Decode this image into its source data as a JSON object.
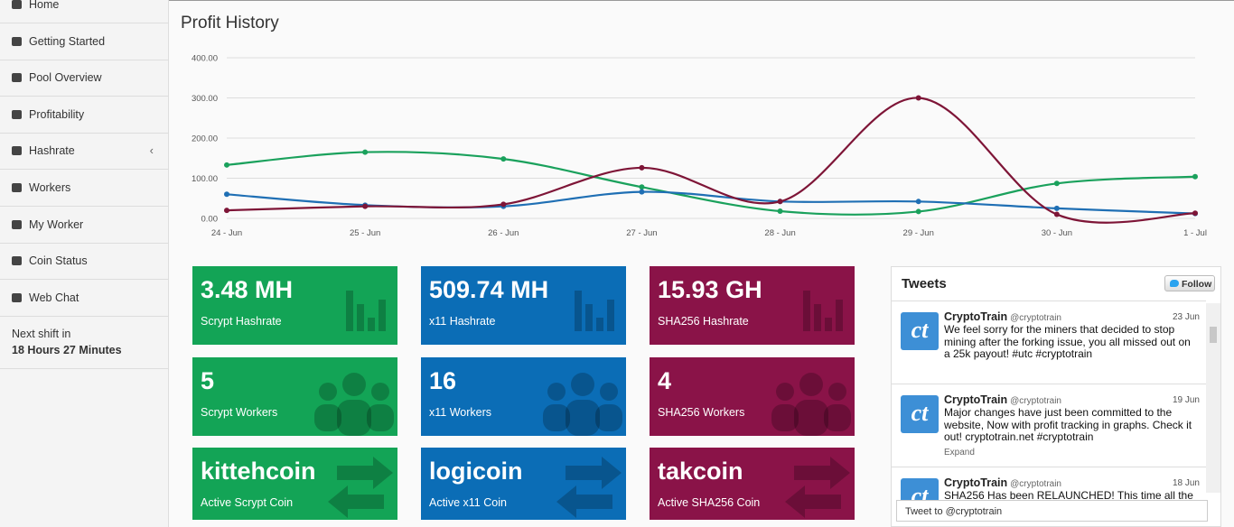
{
  "sidebar": {
    "items": [
      "Home",
      "Getting Started",
      "Pool Overview",
      "Profitability",
      "Hashrate",
      "Workers",
      "My Worker",
      "Coin Status",
      "Web Chat"
    ],
    "shift_label": "Next shift in",
    "shift_value": "18 Hours 27 Minutes"
  },
  "chart_data": {
    "type": "line",
    "title": "Profit History",
    "categories": [
      "24 - Jun",
      "25 - Jun",
      "26 - Jun",
      "27 - Jun",
      "28 - Jun",
      "29 - Jun",
      "30 - Jun",
      "1 - Jul"
    ],
    "series": [
      {
        "color": "#1aa15c",
        "values": [
          133,
          165,
          148,
          78,
          18,
          17,
          87,
          104
        ]
      },
      {
        "color": "#1f6fb4",
        "values": [
          60,
          33,
          30,
          66,
          42,
          42,
          25,
          12
        ]
      },
      {
        "color": "#7e1537",
        "values": [
          20,
          30,
          35,
          126,
          42,
          300,
          10,
          13
        ]
      }
    ],
    "ylim": [
      0,
      400
    ],
    "yticks": [
      {
        "value": 0,
        "label": "0.00"
      },
      {
        "value": 100,
        "label": "100.00"
      },
      {
        "value": 200,
        "label": "200.00"
      },
      {
        "value": 300,
        "label": "300.00"
      },
      {
        "value": 400,
        "label": "400.00"
      }
    ],
    "grid": true
  },
  "tiles": {
    "colors": [
      "#13a456",
      "#0b6db6",
      "#8a1348"
    ],
    "rows": [
      [
        {
          "value": "3.48 MH",
          "label": "Scrypt Hashrate"
        },
        {
          "value": "509.74 MH",
          "label": "x11 Hashrate"
        },
        {
          "value": "15.93 GH",
          "label": "SHA256 Hashrate"
        }
      ],
      [
        {
          "value": "5",
          "label": "Scrypt Workers"
        },
        {
          "value": "16",
          "label": "x11 Workers"
        },
        {
          "value": "4",
          "label": "SHA256 Workers"
        }
      ],
      [
        {
          "value": "kittehcoin",
          "label": "Active Scrypt Coin"
        },
        {
          "value": "logicoin",
          "label": "Active x11 Coin"
        },
        {
          "value": "takcoin",
          "label": "Active SHA256 Coin"
        }
      ]
    ]
  },
  "tweets": {
    "title": "Tweets",
    "follow": "Follow",
    "avatar": "ct",
    "items": [
      {
        "name": "CryptoTrain",
        "handle": "@cryptotrain",
        "date": "23 Jun",
        "text": "We feel sorry for the miners that decided to stop mining after the forking issue, you all missed out on a 25k payout! #utc #cryptotrain"
      },
      {
        "name": "CryptoTrain",
        "handle": "@cryptotrain",
        "date": "19 Jun",
        "text": "Major changes have just been committed to the website, Now with profit tracking in graphs. Check it out! cryptotrain.net #cryptotrain",
        "expand": "Expand"
      },
      {
        "name": "CryptoTrain",
        "handle": "@cryptotrain",
        "date": "18 Jun",
        "text": "SHA256 Has been RELAUNCHED! This time all the"
      }
    ],
    "input": "Tweet to @cryptotrain"
  }
}
